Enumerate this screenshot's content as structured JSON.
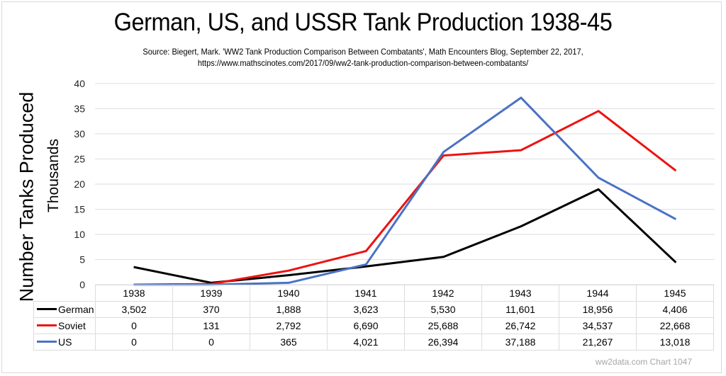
{
  "chart_data": {
    "type": "line",
    "title": "German, US, and USSR Tank Production 1938-45",
    "subtitle_lines": [
      "Source: Biegert, Mark. 'WW2 Tank Production Comparison Between Combatants', Math Encounters Blog, September 22, 2017,",
      "https://www.mathscinotes.com/2017/09/ww2-tank-production-comparison-between-combatants/"
    ],
    "ylabel": "Number Tanks Produced",
    "ylabel_units": "Thousands",
    "xlabel": "",
    "categories": [
      "1938",
      "1939",
      "1940",
      "1941",
      "1942",
      "1943",
      "1944",
      "1945"
    ],
    "ylim": [
      0,
      40
    ],
    "yticks": [
      "0",
      "5",
      "10",
      "15",
      "20",
      "25",
      "30",
      "35",
      "40"
    ],
    "ytick_values": [
      0,
      5,
      10,
      15,
      20,
      25,
      30,
      35,
      40
    ],
    "grid": true,
    "legend": "data-table-below",
    "series": [
      {
        "name": "German",
        "color": "#000000",
        "values": [
          3502,
          370,
          1888,
          3623,
          5530,
          11601,
          18956,
          4406
        ],
        "labels": [
          "3,502",
          "370",
          "1,888",
          "3,623",
          "5,530",
          "11,601",
          "18,956",
          "4,406"
        ]
      },
      {
        "name": "Soviet",
        "color": "#ee1111",
        "values": [
          0,
          131,
          2792,
          6690,
          25688,
          26742,
          34537,
          22668
        ],
        "labels": [
          "0",
          "131",
          "2,792",
          "6,690",
          "25,688",
          "26,742",
          "34,537",
          "22,668"
        ]
      },
      {
        "name": "US",
        "color": "#4a72c4",
        "values": [
          0,
          0,
          365,
          4021,
          26394,
          37188,
          21267,
          13018
        ],
        "labels": [
          "0",
          "0",
          "365",
          "4,021",
          "26,394",
          "37,188",
          "21,267",
          "13,018"
        ]
      }
    ],
    "value_scale": 1000,
    "annotation": "ww2data.com Chart 1047"
  }
}
